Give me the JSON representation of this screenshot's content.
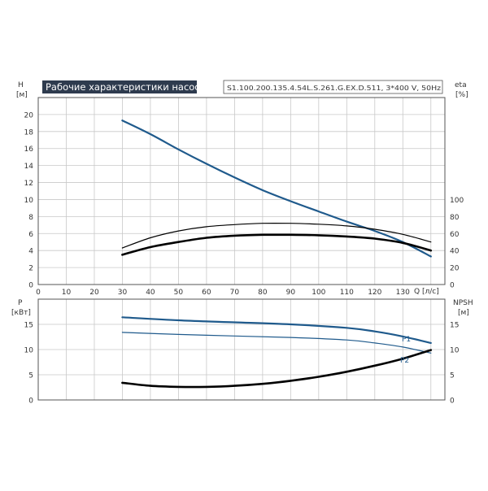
{
  "header": {
    "title": "Рабочие характеристики насоса",
    "model": "S1.100.200.135.4.54L.S.261.G.EX.D.511, 3*400 V, 50Hz"
  },
  "colors": {
    "title_bg": "#2e3b4e",
    "title_text": "#ffffff",
    "grid": "#c8c8c8",
    "frame": "#555555",
    "blue": "#1f5a8c",
    "black": "#000000"
  },
  "chart_data": [
    {
      "type": "line",
      "name": "top-panel",
      "x_axis": {
        "label": "Q [л/с]",
        "ticks": [
          0,
          10,
          20,
          30,
          40,
          50,
          60,
          70,
          80,
          90,
          100,
          110,
          120,
          130
        ],
        "range": [
          0,
          145
        ]
      },
      "y_left": {
        "label_line1": "H",
        "label_line2": "[м]",
        "ticks": [
          0,
          2,
          4,
          6,
          8,
          10,
          12,
          14,
          16,
          18,
          20
        ],
        "range": [
          0,
          22
        ]
      },
      "y_right": {
        "label_line1": "eta",
        "label_line2": "[%]",
        "ticks": [
          0,
          20,
          40,
          60,
          80,
          100
        ],
        "range": [
          0,
          100
        ]
      },
      "grid": true,
      "series": [
        {
          "axis": "left",
          "color": "#1f5a8c",
          "stroke": 2.2,
          "x": [
            30,
            40,
            50,
            60,
            70,
            80,
            90,
            100,
            110,
            120,
            130,
            140
          ],
          "y": [
            19.3,
            17.7,
            15.9,
            14.2,
            12.6,
            11.1,
            9.8,
            8.6,
            7.4,
            6.3,
            5.0,
            3.3
          ]
        },
        {
          "axis": "left",
          "color": "#000000",
          "stroke": 2.6,
          "x": [
            30,
            40,
            50,
            60,
            70,
            80,
            90,
            100,
            110,
            120,
            130,
            140
          ],
          "y": [
            3.5,
            4.4,
            5.0,
            5.5,
            5.75,
            5.85,
            5.85,
            5.8,
            5.65,
            5.4,
            4.9,
            4.0
          ]
        },
        {
          "axis": "left",
          "color": "#000000",
          "stroke": 1.2,
          "x": [
            30,
            40,
            50,
            60,
            70,
            80,
            90,
            100,
            110,
            120,
            130,
            140
          ],
          "y": [
            4.3,
            5.5,
            6.3,
            6.8,
            7.05,
            7.2,
            7.2,
            7.1,
            6.9,
            6.5,
            5.9,
            5.0
          ]
        }
      ]
    },
    {
      "type": "line",
      "name": "bottom-panel",
      "y_left": {
        "label_line1": "P",
        "label_line2": "[кВт]",
        "ticks": [
          0,
          5,
          10,
          15
        ],
        "range": [
          0,
          20
        ]
      },
      "y_right": {
        "label_line1": "NPSH",
        "label_line2": "[м]",
        "ticks": [
          0,
          5,
          10,
          15
        ],
        "range": [
          0,
          20
        ]
      },
      "grid": true,
      "series": [
        {
          "name": "P1",
          "axis": "left",
          "color": "#1f5a8c",
          "stroke": 2.2,
          "x": [
            30,
            50,
            70,
            90,
            110,
            120,
            130,
            140
          ],
          "y": [
            16.4,
            15.8,
            15.4,
            15.0,
            14.3,
            13.6,
            12.6,
            11.3
          ]
        },
        {
          "name": "P2",
          "axis": "left",
          "color": "#1f5a8c",
          "stroke": 1.2,
          "x": [
            30,
            50,
            70,
            90,
            110,
            120,
            130,
            140
          ],
          "y": [
            13.4,
            13.0,
            12.7,
            12.4,
            11.9,
            11.3,
            10.5,
            9.3
          ]
        },
        {
          "axis": "right",
          "color": "#000000",
          "stroke": 2.6,
          "x": [
            30,
            40,
            50,
            60,
            70,
            80,
            90,
            100,
            110,
            120,
            130,
            140
          ],
          "y": [
            3.4,
            2.8,
            2.6,
            2.6,
            2.8,
            3.2,
            3.8,
            4.6,
            5.6,
            6.8,
            8.2,
            9.9
          ]
        }
      ]
    }
  ]
}
